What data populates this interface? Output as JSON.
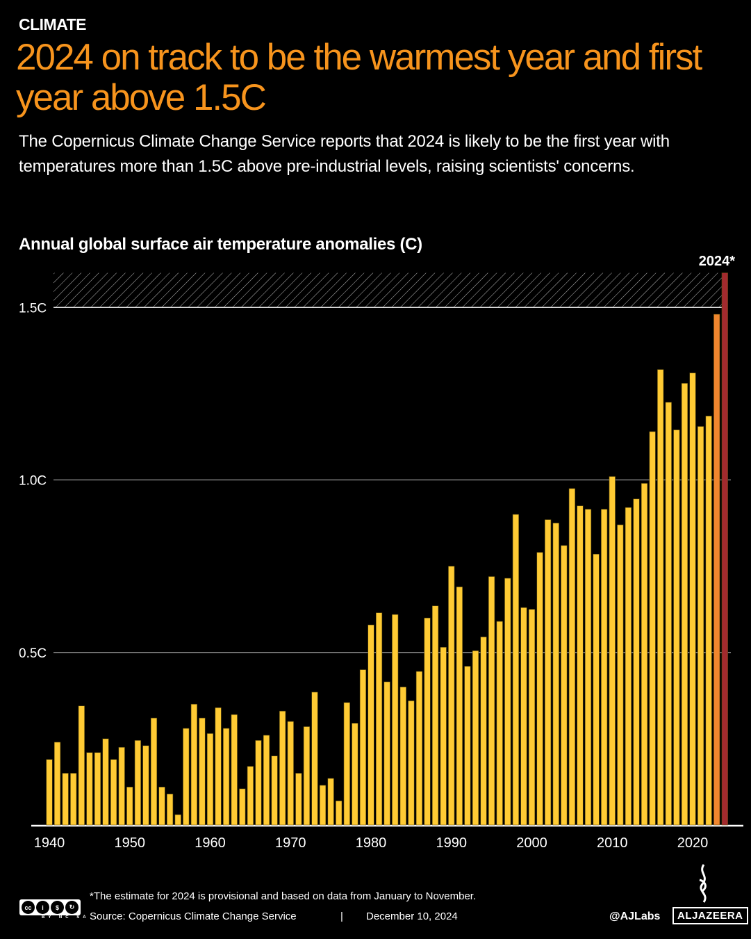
{
  "header": {
    "kicker": "CLIMATE",
    "title": "2024 on track to be the warmest year and first year above 1.5C",
    "subtitle": "The Copernicus Climate Change Service reports that 2024 is likely to be the first year with temperatures more than 1.5C above pre-industrial levels, raising scientists' concerns."
  },
  "chart_data": {
    "type": "bar",
    "title": "Annual global surface air temperature anomalies (C)",
    "years": [
      1940,
      1941,
      1942,
      1943,
      1944,
      1945,
      1946,
      1947,
      1948,
      1949,
      1950,
      1951,
      1952,
      1953,
      1954,
      1955,
      1956,
      1957,
      1958,
      1959,
      1960,
      1961,
      1962,
      1963,
      1964,
      1965,
      1966,
      1967,
      1968,
      1969,
      1970,
      1971,
      1972,
      1973,
      1974,
      1975,
      1976,
      1977,
      1978,
      1979,
      1980,
      1981,
      1982,
      1983,
      1984,
      1985,
      1986,
      1987,
      1988,
      1989,
      1990,
      1991,
      1992,
      1993,
      1994,
      1995,
      1996,
      1997,
      1998,
      1999,
      2000,
      2001,
      2002,
      2003,
      2004,
      2005,
      2006,
      2007,
      2008,
      2009,
      2010,
      2011,
      2012,
      2013,
      2014,
      2015,
      2016,
      2017,
      2018,
      2019,
      2020,
      2021,
      2022,
      2023,
      2024
    ],
    "values": [
      0.19,
      0.24,
      0.15,
      0.15,
      0.345,
      0.21,
      0.21,
      0.25,
      0.19,
      0.225,
      0.11,
      0.245,
      0.23,
      0.31,
      0.11,
      0.09,
      0.03,
      0.28,
      0.35,
      0.31,
      0.265,
      0.34,
      0.28,
      0.32,
      0.105,
      0.17,
      0.245,
      0.26,
      0.2,
      0.33,
      0.3,
      0.15,
      0.285,
      0.385,
      0.115,
      0.135,
      0.07,
      0.355,
      0.295,
      0.45,
      0.58,
      0.615,
      0.415,
      0.61,
      0.4,
      0.36,
      0.445,
      0.6,
      0.635,
      0.515,
      0.75,
      0.69,
      0.46,
      0.505,
      0.545,
      0.72,
      0.59,
      0.715,
      0.9,
      0.63,
      0.625,
      0.79,
      0.885,
      0.875,
      0.81,
      0.975,
      0.925,
      0.915,
      0.785,
      0.915,
      1.01,
      0.87,
      0.92,
      0.945,
      0.99,
      1.14,
      1.32,
      1.225,
      1.145,
      1.28,
      1.31,
      1.155,
      1.185,
      1.48,
      1.6
    ],
    "x_ticks": [
      "1940",
      "1950",
      "1960",
      "1970",
      "1980",
      "1990",
      "2000",
      "2010",
      "2020"
    ],
    "y_ticks": [
      {
        "value": 0.5,
        "label": "0.5C"
      },
      {
        "value": 1.0,
        "label": "1.0C"
      },
      {
        "value": 1.5,
        "label": "1.5C"
      }
    ],
    "ylim": [
      0,
      1.6
    ],
    "threshold": 1.5,
    "threshold_band": [
      1.5,
      1.6
    ],
    "highlight_label": "2024*",
    "colors": {
      "default": "#ffcb34",
      "2023": "#f0862e",
      "2024": "#a32a2e",
      "band": "#ffffff"
    },
    "grid": true
  },
  "footer": {
    "note": "*The estimate for 2024 is provisional and based on data from January to November.",
    "source": "Source:  Copernicus Climate Change Service",
    "separator": "|",
    "date": "December 10, 2024",
    "handle": "@AJLabs",
    "brand": "ALJAZEERA",
    "license": {
      "icons": [
        "cc",
        "by",
        "nc",
        "sa"
      ],
      "labels": "BY NC SA"
    }
  }
}
